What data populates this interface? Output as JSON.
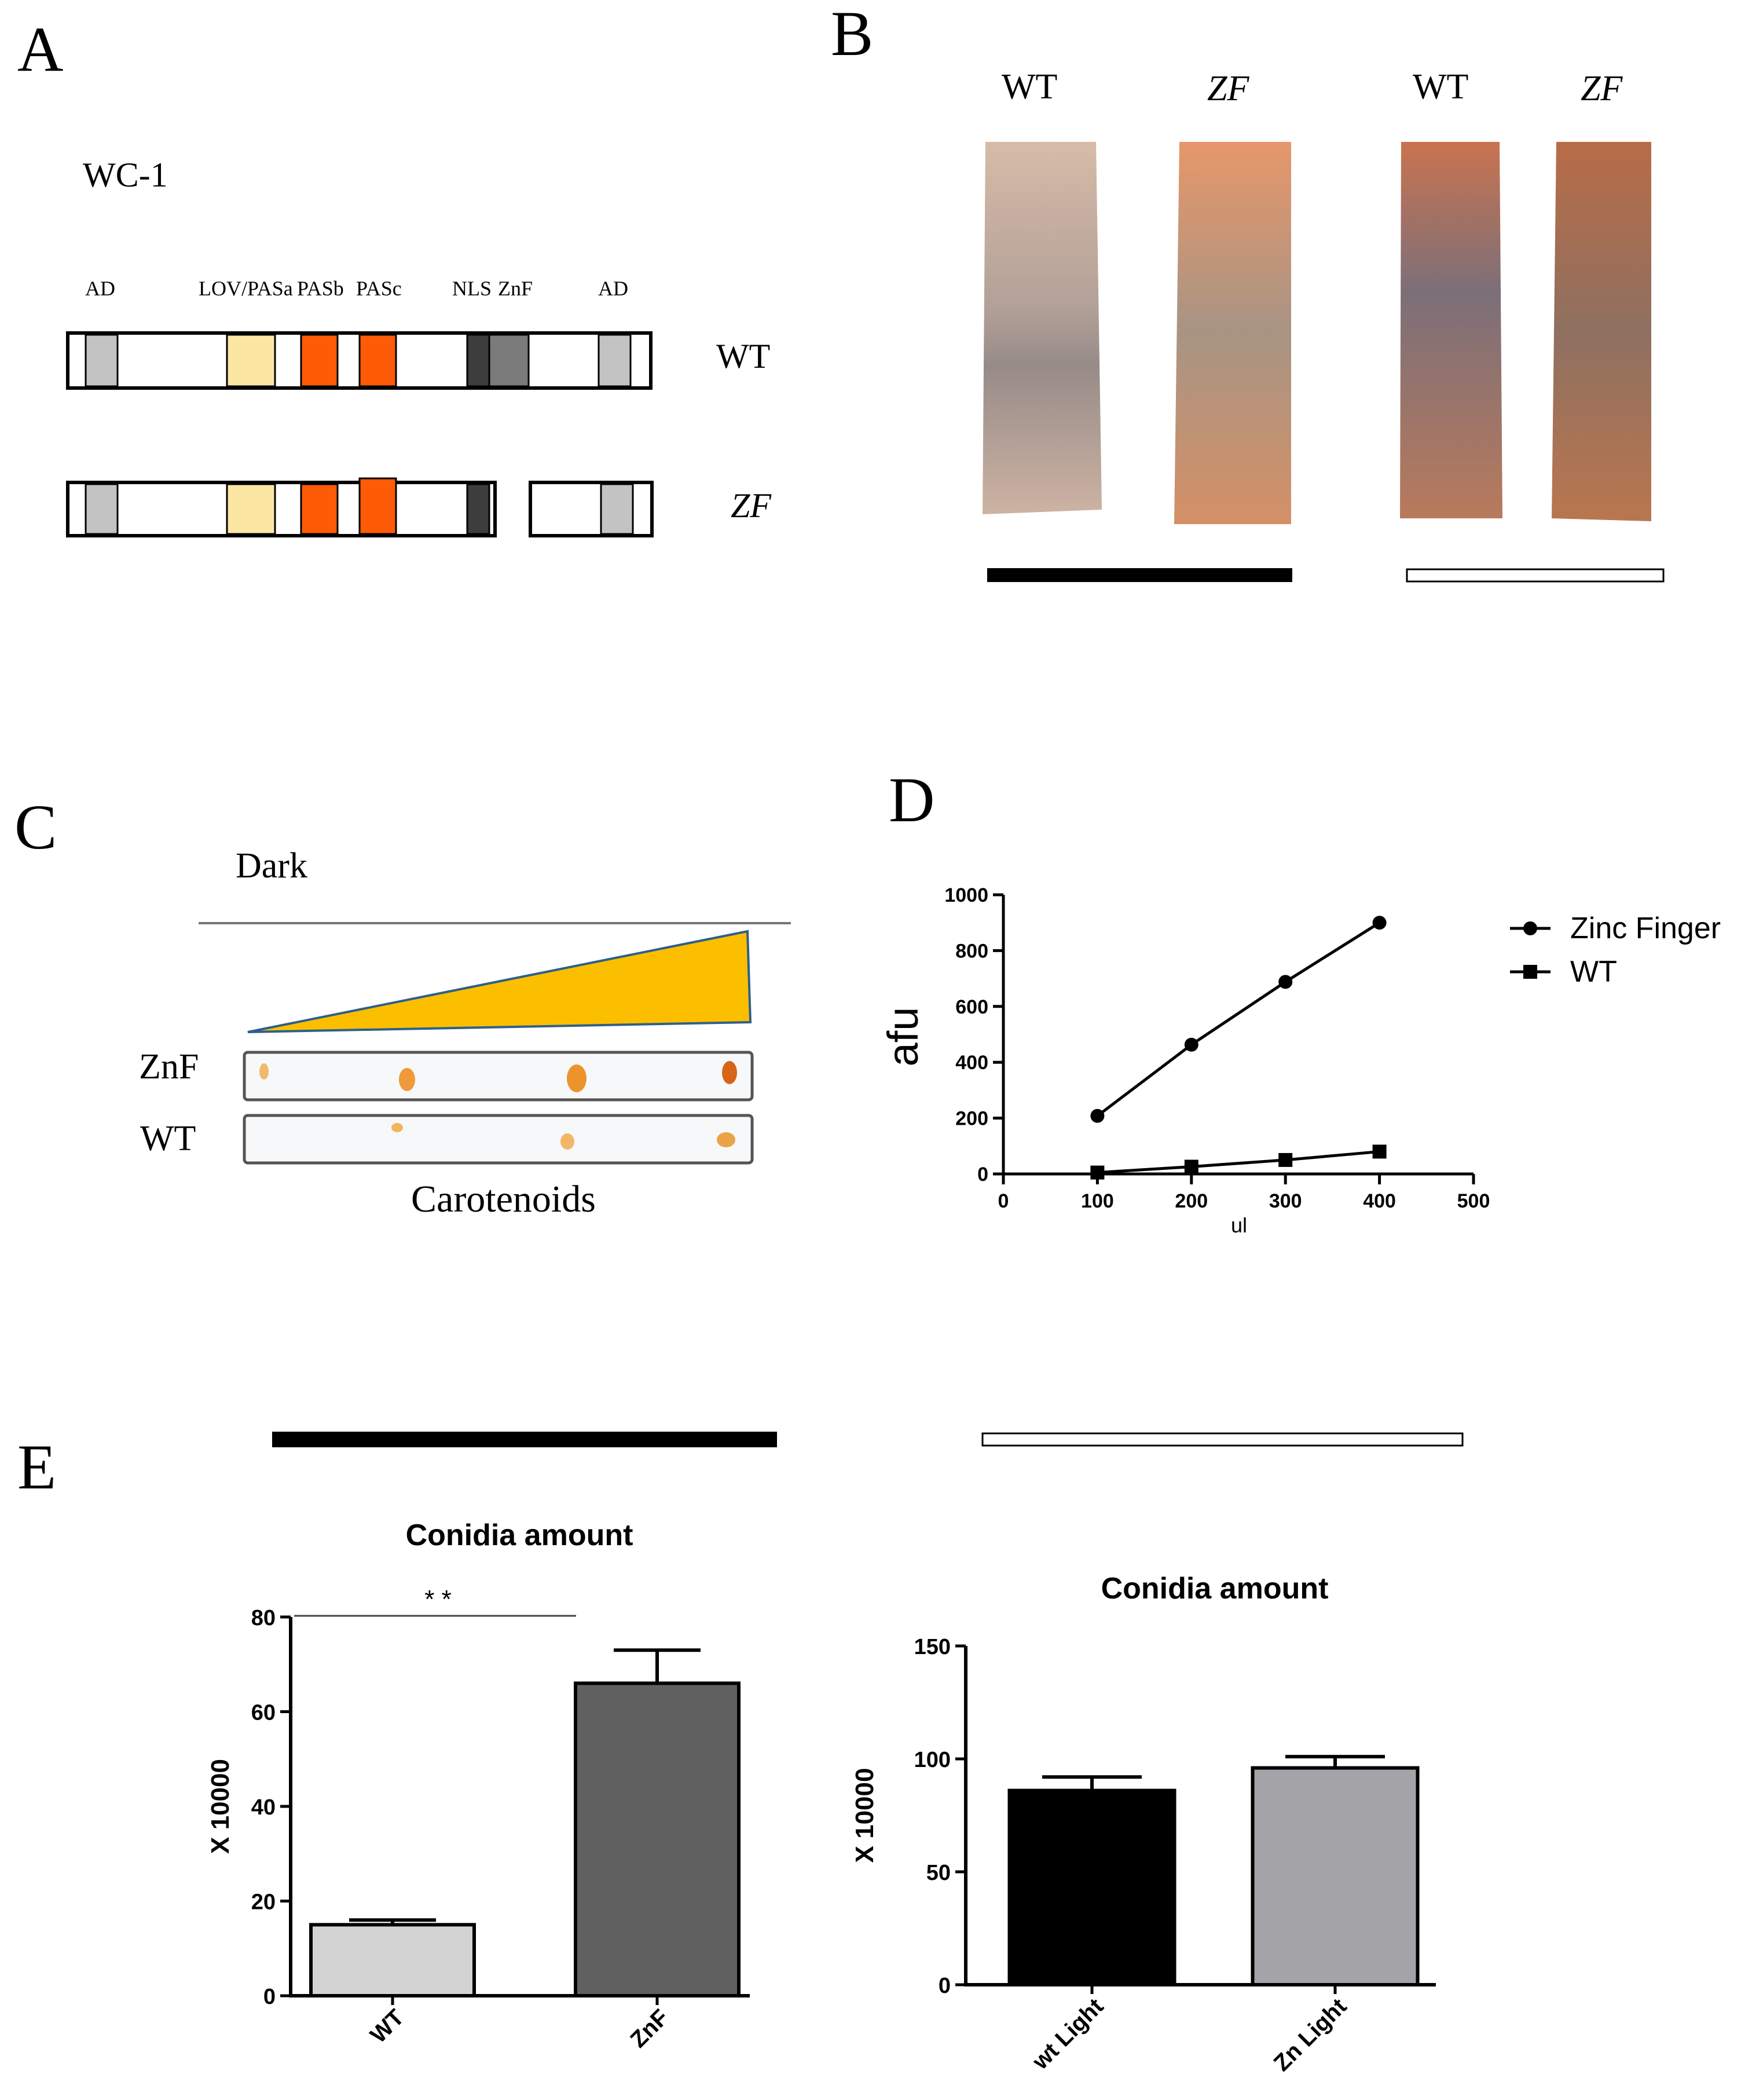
{
  "panels": {
    "A": {
      "letter": "A",
      "protein": "WC-1",
      "domains": [
        "AD",
        "LOV/PASa",
        "PASb",
        "PASc",
        "NLS",
        "ZnF",
        "AD"
      ],
      "rows": [
        "WT",
        "ZF"
      ]
    },
    "B": {
      "letter": "B",
      "labels": [
        "WT",
        "ZF",
        "WT",
        "ZF"
      ]
    },
    "C": {
      "letter": "C",
      "condition": "Dark",
      "rows": [
        "ZnF",
        "WT"
      ],
      "caption": "Carotenoids"
    },
    "D": {
      "letter": "D"
    },
    "E": {
      "letter": "E"
    }
  },
  "colors": {
    "ad": "#c3c3c3",
    "lov": "#fce6a4",
    "pas": "#fe5b06",
    "nls": "#3d3d3d",
    "znf": "#7a7a7a",
    "triangle": "#fcbf00",
    "wt_bar_dark": "#d3d3d3",
    "znf_bar_dark": "#606060",
    "wt_bar_light": "#000000",
    "zn_bar_light": "#a3a3a8"
  },
  "chart_data": [
    {
      "id": "D",
      "type": "line",
      "title": "",
      "xlabel": "ul",
      "ylabel": "afu",
      "xlim": [
        0,
        500
      ],
      "ylim": [
        0,
        1000
      ],
      "xticks": [
        0,
        100,
        200,
        300,
        400,
        500
      ],
      "yticks": [
        0,
        200,
        400,
        600,
        800,
        1000
      ],
      "legend": "right",
      "grid": false,
      "series": [
        {
          "name": "Zinc Finger",
          "marker": "circle",
          "x": [
            100,
            200,
            300,
            400
          ],
          "y": [
            208,
            463,
            688,
            900
          ]
        },
        {
          "name": "WT",
          "marker": "square",
          "x": [
            100,
            200,
            300,
            400
          ],
          "y": [
            5,
            26,
            50,
            80
          ]
        }
      ]
    },
    {
      "id": "E-dark",
      "type": "bar",
      "title": "Conidia amount",
      "xlabel": "",
      "ylabel": "X 10000",
      "ylim": [
        0,
        80
      ],
      "yticks": [
        0,
        20,
        40,
        60,
        80
      ],
      "categories": [
        "WT",
        "ZnF"
      ],
      "values": [
        15,
        66
      ],
      "errors": [
        1,
        7
      ],
      "significance": "* *",
      "condition_bar": "dark"
    },
    {
      "id": "E-light",
      "type": "bar",
      "title": "Conidia amount",
      "xlabel": "",
      "ylabel": "X 10000",
      "ylim": [
        0,
        150
      ],
      "yticks": [
        0,
        50,
        100,
        150
      ],
      "categories": [
        "wt Light",
        "Zn Light"
      ],
      "values": [
        86,
        96
      ],
      "errors": [
        6,
        5
      ],
      "condition_bar": "light"
    }
  ]
}
